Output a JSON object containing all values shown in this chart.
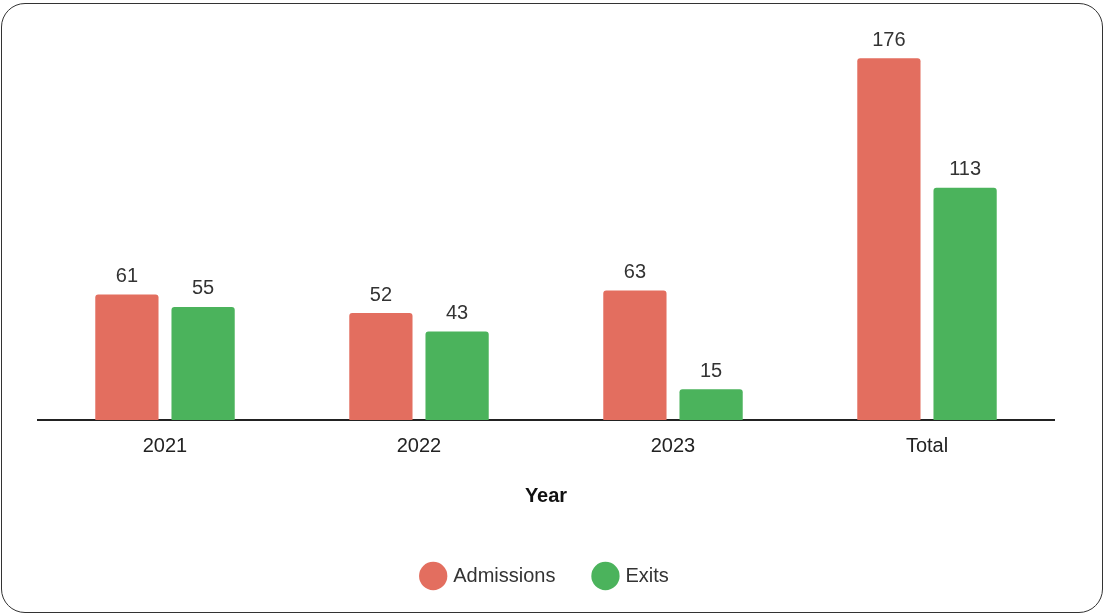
{
  "chart_data": {
    "type": "bar",
    "xlabel": "Year",
    "categories": [
      "2021",
      "2022",
      "2023",
      "Total"
    ],
    "series": [
      {
        "name": "Admissions",
        "color": "#e36e5f",
        "values": [
          61,
          52,
          63,
          176
        ]
      },
      {
        "name": "Exits",
        "color": "#4bb35c",
        "values": [
          55,
          43,
          15,
          113
        ]
      }
    ],
    "data_labels": true,
    "grid": false,
    "legend": "bottom",
    "tick_labels": "x"
  }
}
